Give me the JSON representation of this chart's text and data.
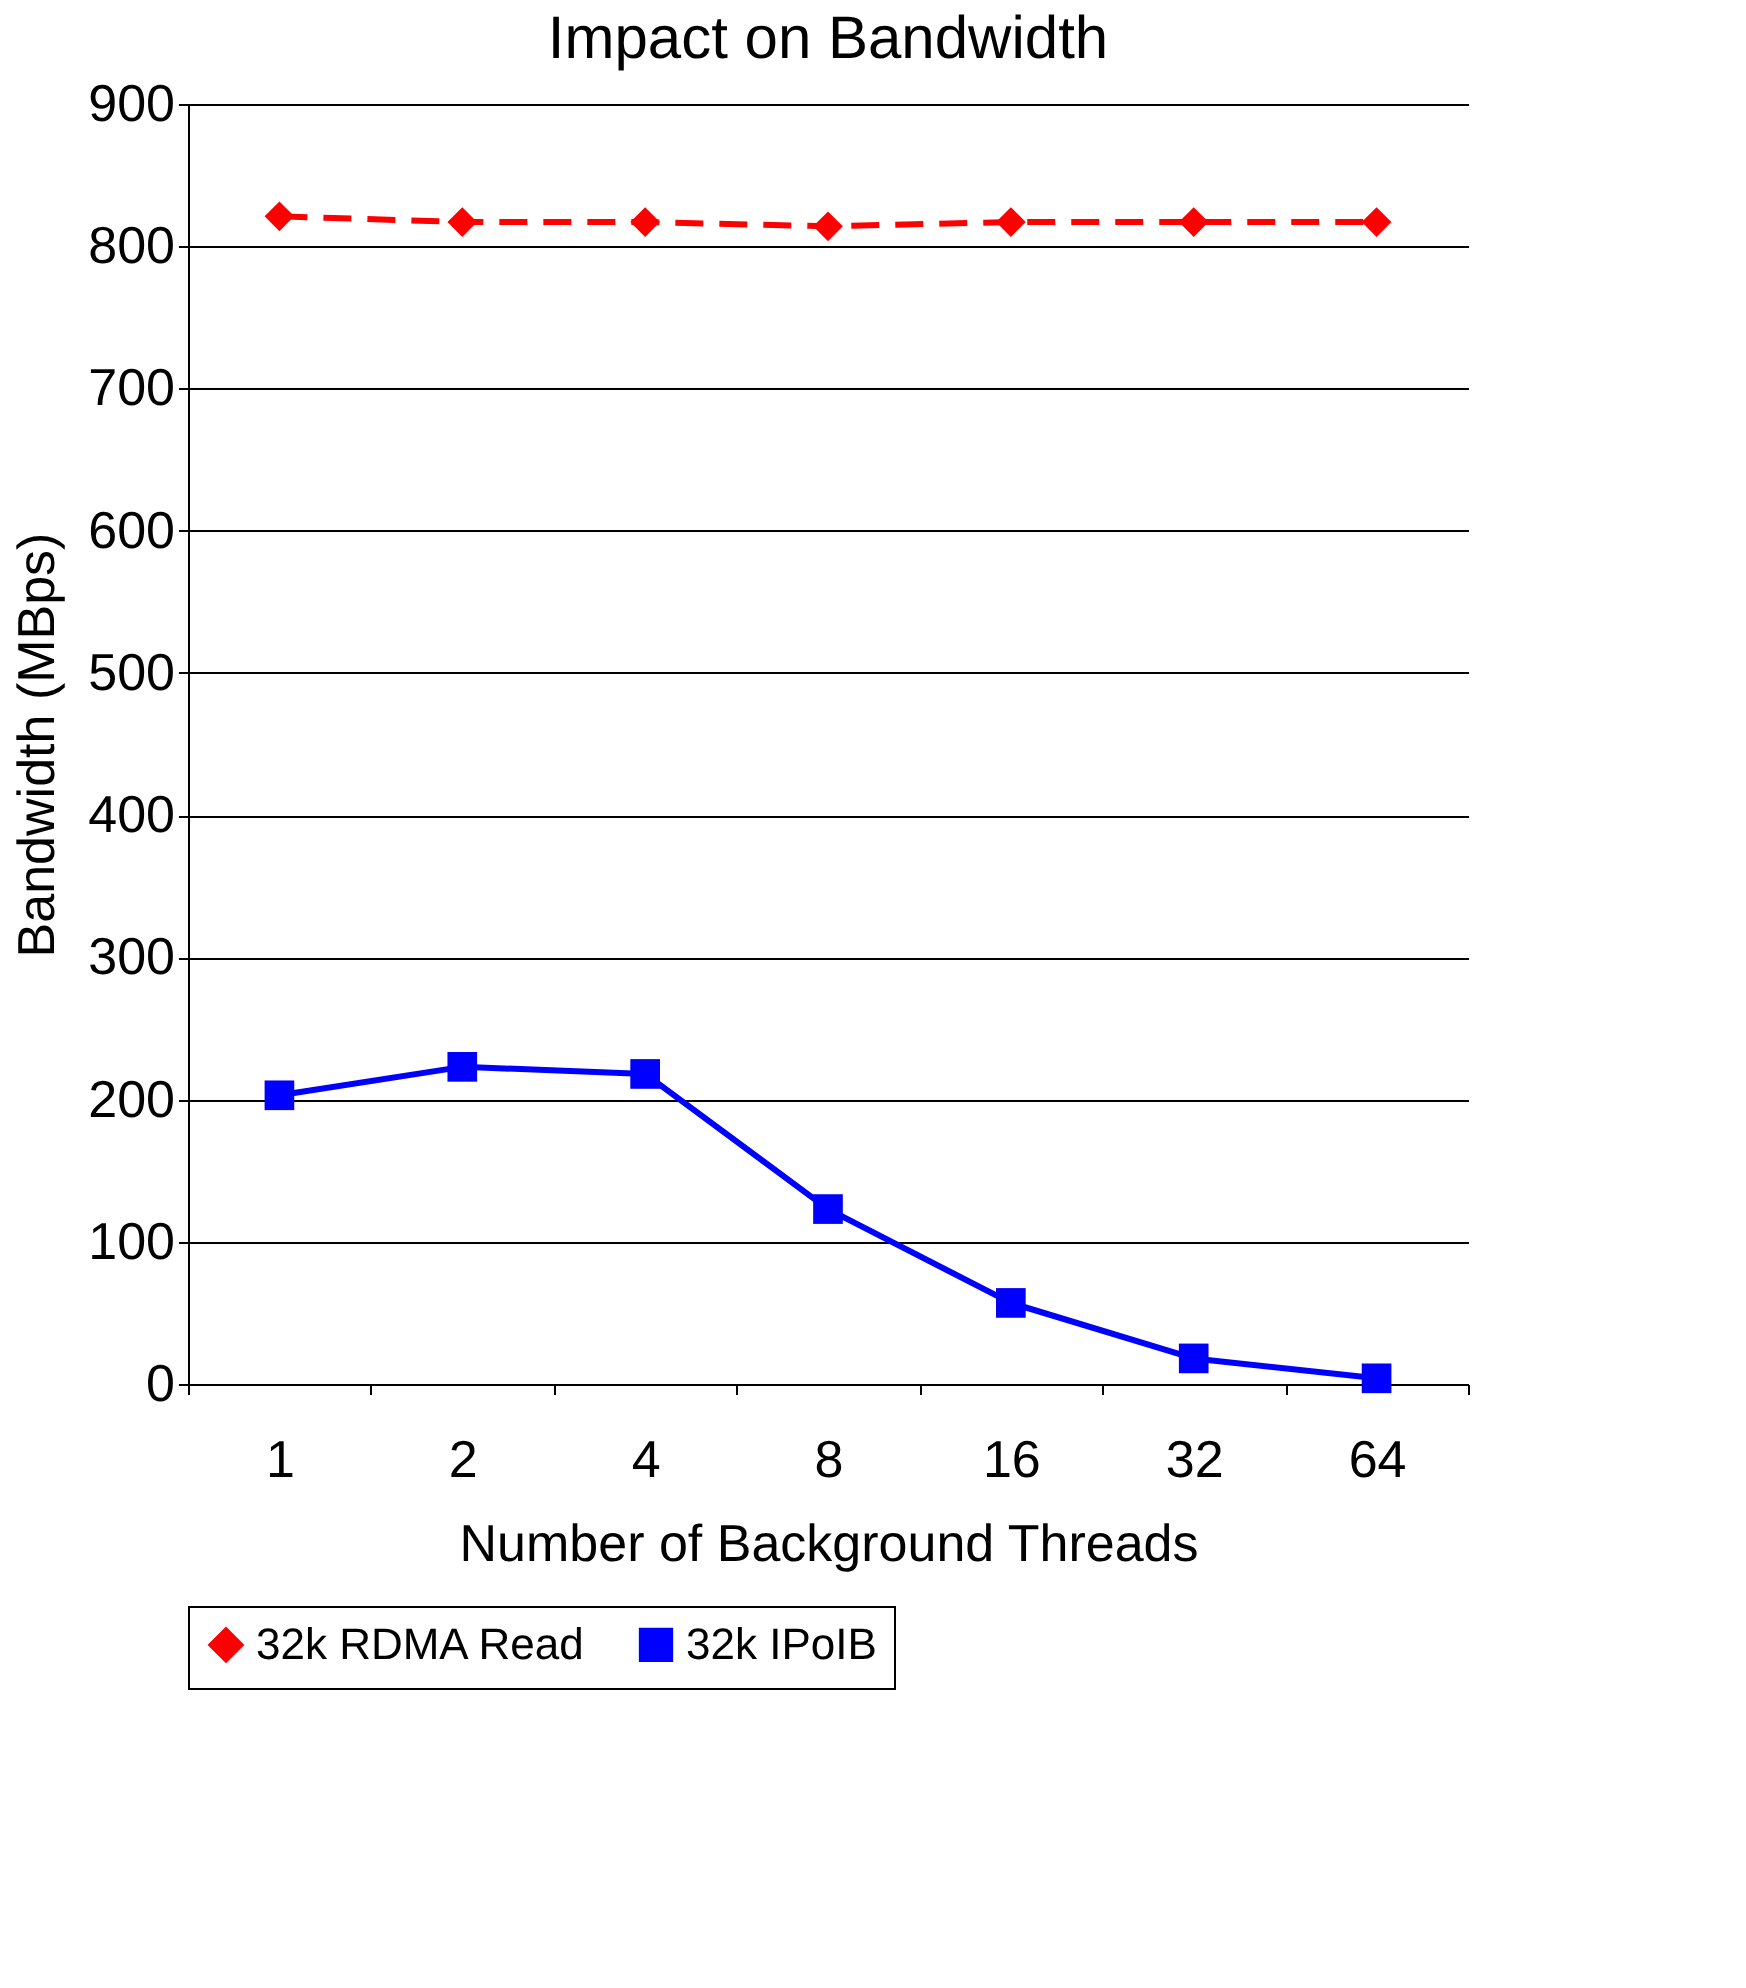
{
  "chart_data": {
    "type": "line",
    "title": "Impact on Bandwidth",
    "xlabel": "Number of Background Threads",
    "ylabel": "Bandwidth (MBps)",
    "categories": [
      "1",
      "2",
      "4",
      "8",
      "16",
      "32",
      "64"
    ],
    "series": [
      {
        "name": "32k RDMA Read",
        "color": "#ff0000",
        "marker": "diamond",
        "line_style": "dashed",
        "values": [
          821,
          817,
          817,
          814,
          817,
          817,
          817
        ]
      },
      {
        "name": "32k IPoIB",
        "color": "#0000ff",
        "marker": "square",
        "line_style": "solid",
        "values": [
          203,
          223,
          218,
          123,
          57,
          18,
          4
        ]
      }
    ],
    "ylim": [
      0,
      900
    ],
    "yticks": [
      0,
      100,
      200,
      300,
      400,
      500,
      600,
      700,
      800,
      900
    ],
    "grid": "y",
    "legend": "bottom"
  }
}
